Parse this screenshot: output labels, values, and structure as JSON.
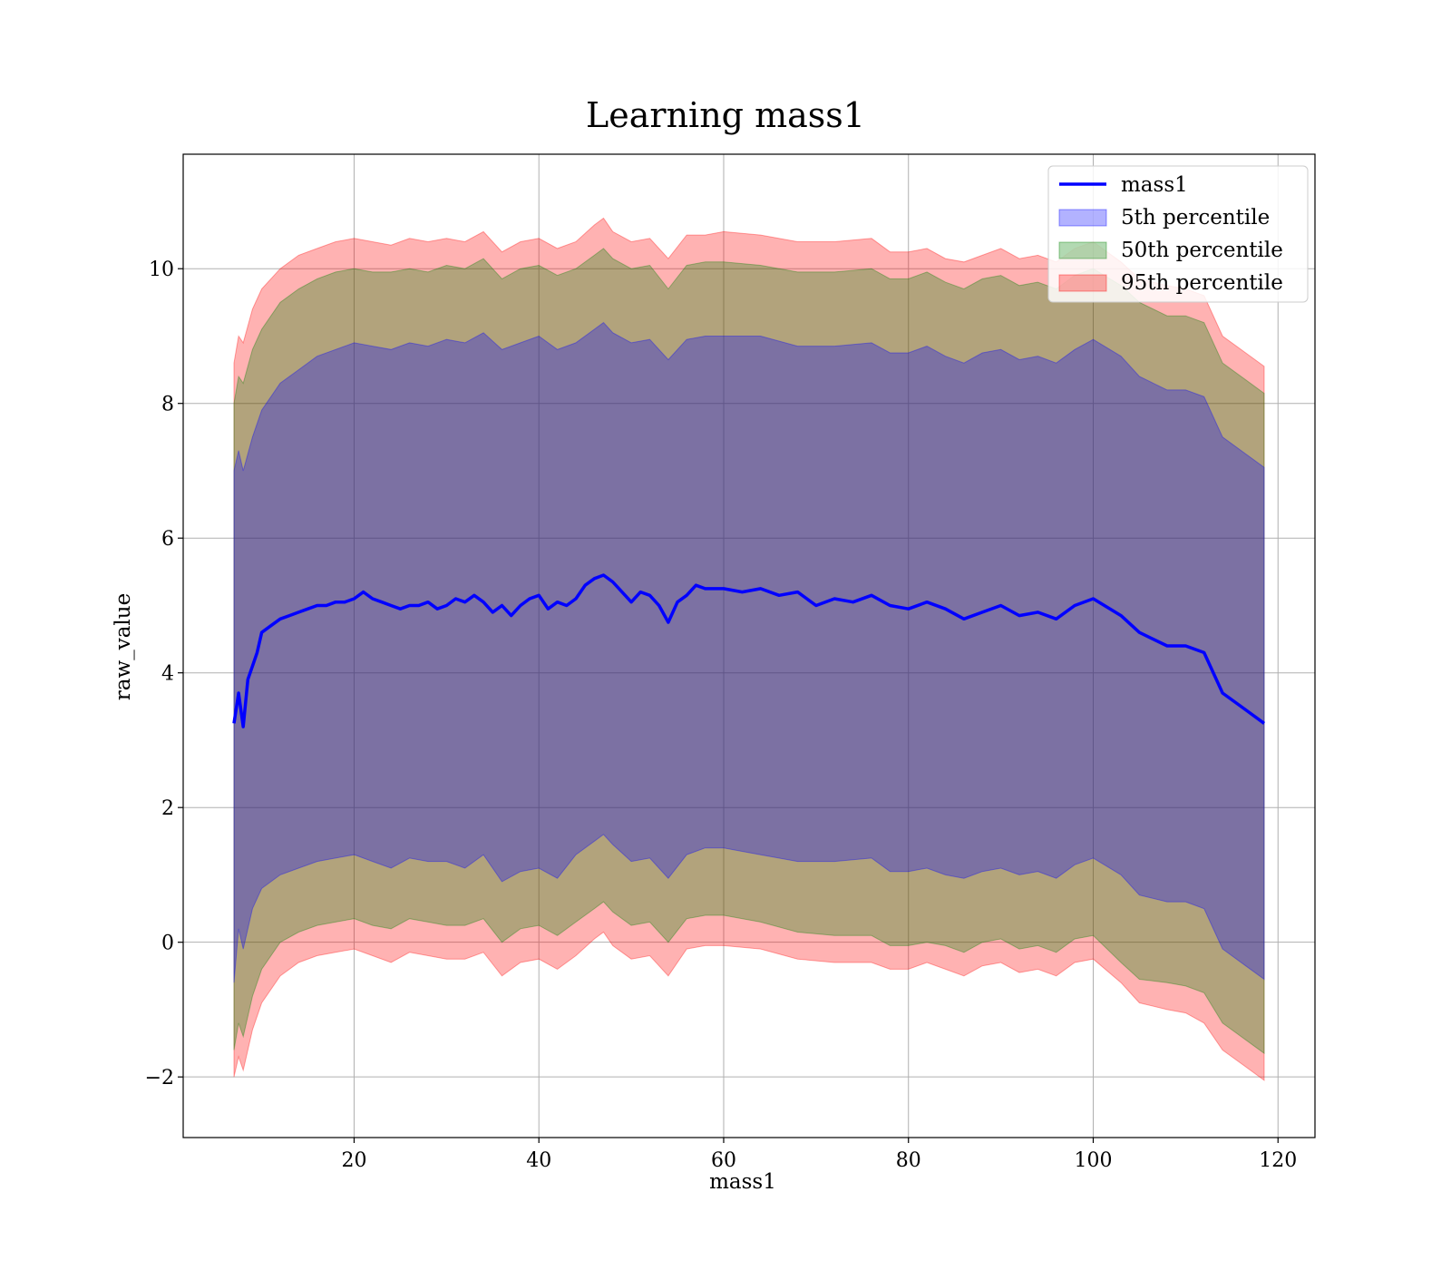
{
  "chart_data": {
    "type": "line",
    "title": "Learning mass1",
    "xlabel": "mass1",
    "ylabel": "raw_value",
    "xlim": [
      1.5,
      124
    ],
    "ylim": [
      -2.9,
      11.7
    ],
    "xticks": [
      20,
      40,
      60,
      80,
      100,
      120
    ],
    "yticks": [
      -2,
      0,
      2,
      4,
      6,
      8,
      10
    ],
    "grid": true,
    "legend_position": "top-right",
    "colors": {
      "line": "#0000ff",
      "band_5": "#0000ff",
      "band_50": "#008000",
      "band_95": "#ff0000"
    },
    "line": {
      "name": "mass1",
      "x": [
        7.0,
        7.5,
        8.0,
        8.5,
        9.0,
        9.5,
        10.0,
        11.0,
        12.0,
        13.0,
        14.0,
        15.0,
        16.0,
        17.0,
        18.0,
        19.0,
        20.0,
        21.0,
        22.0,
        23.0,
        24.0,
        25.0,
        26.0,
        27.0,
        28.0,
        29.0,
        30.0,
        31.0,
        32.0,
        33.0,
        34.0,
        35.0,
        36.0,
        37.0,
        38.0,
        39.0,
        40.0,
        41.0,
        42.0,
        43.0,
        44.0,
        45.0,
        46.0,
        47.0,
        48.0,
        49.0,
        50.0,
        51.0,
        52.0,
        53.0,
        54.0,
        55.0,
        56.0,
        57.0,
        58.0,
        59.0,
        60.0,
        62.0,
        64.0,
        66.0,
        68.0,
        70.0,
        72.0,
        74.0,
        76.0,
        78.0,
        80.0,
        82.0,
        84.0,
        86.0,
        88.0,
        90.0,
        92.0,
        94.0,
        96.0,
        98.0,
        100.0,
        103.0,
        105.0,
        108.0,
        110.0,
        112.0,
        114.0,
        116.5,
        118.5
      ],
      "y": [
        3.25,
        3.7,
        3.2,
        3.9,
        4.1,
        4.3,
        4.6,
        4.7,
        4.8,
        4.85,
        4.9,
        4.95,
        5.0,
        5.0,
        5.05,
        5.05,
        5.1,
        5.2,
        5.1,
        5.05,
        5.0,
        4.95,
        5.0,
        5.0,
        5.05,
        4.95,
        5.0,
        5.1,
        5.05,
        5.15,
        5.05,
        4.9,
        5.0,
        4.85,
        5.0,
        5.1,
        5.15,
        4.95,
        5.05,
        5.0,
        5.1,
        5.3,
        5.4,
        5.45,
        5.35,
        5.2,
        5.05,
        5.2,
        5.15,
        5.0,
        4.75,
        5.05,
        5.15,
        5.3,
        5.25,
        5.25,
        5.25,
        5.2,
        5.25,
        5.15,
        5.2,
        5.0,
        5.1,
        5.05,
        5.15,
        5.0,
        4.95,
        5.05,
        4.95,
        4.8,
        4.9,
        5.0,
        4.85,
        4.9,
        4.8,
        5.0,
        5.1,
        4.85,
        4.6,
        4.4,
        4.4,
        4.3,
        3.7,
        3.45,
        3.25
      ]
    },
    "bands": [
      {
        "name": "5th percentile",
        "x": [
          7.0,
          7.5,
          8.0,
          9.0,
          10.0,
          12.0,
          14.0,
          16.0,
          18.0,
          20.0,
          22.0,
          24.0,
          26.0,
          28.0,
          30.0,
          32.0,
          34.0,
          36.0,
          38.0,
          40.0,
          42.0,
          44.0,
          46.0,
          47.0,
          48.0,
          50.0,
          52.0,
          54.0,
          56.0,
          58.0,
          60.0,
          64.0,
          68.0,
          72.0,
          76.0,
          78.0,
          80.0,
          82.0,
          84.0,
          86.0,
          88.0,
          90.0,
          92.0,
          94.0,
          96.0,
          98.0,
          100.0,
          103.0,
          105.0,
          108.0,
          110.0,
          112.0,
          114.0,
          116.5,
          118.5
        ],
        "lower": [
          -0.6,
          0.2,
          -0.1,
          0.5,
          0.8,
          1.0,
          1.1,
          1.2,
          1.25,
          1.3,
          1.2,
          1.1,
          1.25,
          1.2,
          1.2,
          1.1,
          1.3,
          0.9,
          1.05,
          1.1,
          0.95,
          1.3,
          1.5,
          1.6,
          1.45,
          1.2,
          1.25,
          0.95,
          1.3,
          1.4,
          1.4,
          1.3,
          1.2,
          1.2,
          1.25,
          1.05,
          1.05,
          1.1,
          1.0,
          0.95,
          1.05,
          1.1,
          1.0,
          1.05,
          0.95,
          1.15,
          1.25,
          1.0,
          0.7,
          0.6,
          0.6,
          0.5,
          -0.1,
          -0.35,
          -0.55
        ],
        "upper": [
          7.0,
          7.3,
          7.0,
          7.5,
          7.9,
          8.3,
          8.5,
          8.7,
          8.8,
          8.9,
          8.85,
          8.8,
          8.9,
          8.85,
          8.95,
          8.9,
          9.05,
          8.8,
          8.9,
          9.0,
          8.8,
          8.9,
          9.1,
          9.2,
          9.05,
          8.9,
          8.95,
          8.65,
          8.95,
          9.0,
          9.0,
          9.0,
          8.85,
          8.85,
          8.9,
          8.75,
          8.75,
          8.85,
          8.7,
          8.6,
          8.75,
          8.8,
          8.65,
          8.7,
          8.6,
          8.8,
          8.95,
          8.7,
          8.4,
          8.2,
          8.2,
          8.1,
          7.5,
          7.25,
          7.05
        ]
      },
      {
        "name": "50th percentile",
        "x": [
          7.0,
          7.5,
          8.0,
          9.0,
          10.0,
          12.0,
          14.0,
          16.0,
          18.0,
          20.0,
          22.0,
          24.0,
          26.0,
          28.0,
          30.0,
          32.0,
          34.0,
          36.0,
          38.0,
          40.0,
          42.0,
          44.0,
          46.0,
          47.0,
          48.0,
          50.0,
          52.0,
          54.0,
          56.0,
          58.0,
          60.0,
          64.0,
          68.0,
          72.0,
          76.0,
          78.0,
          80.0,
          82.0,
          84.0,
          86.0,
          88.0,
          90.0,
          92.0,
          94.0,
          96.0,
          98.0,
          100.0,
          103.0,
          105.0,
          108.0,
          110.0,
          112.0,
          114.0,
          116.5,
          118.5
        ],
        "lower": [
          -1.6,
          -1.2,
          -1.4,
          -0.8,
          -0.4,
          0.0,
          0.15,
          0.25,
          0.3,
          0.35,
          0.25,
          0.2,
          0.35,
          0.3,
          0.25,
          0.25,
          0.35,
          0.0,
          0.2,
          0.25,
          0.1,
          0.3,
          0.5,
          0.6,
          0.45,
          0.25,
          0.3,
          0.0,
          0.35,
          0.4,
          0.4,
          0.3,
          0.15,
          0.1,
          0.1,
          -0.05,
          -0.05,
          0.0,
          -0.05,
          -0.15,
          0.0,
          0.05,
          -0.1,
          -0.05,
          -0.15,
          0.05,
          0.1,
          -0.3,
          -0.55,
          -0.6,
          -0.65,
          -0.75,
          -1.2,
          -1.45,
          -1.65
        ],
        "upper": [
          8.0,
          8.4,
          8.3,
          8.8,
          9.1,
          9.5,
          9.7,
          9.85,
          9.95,
          10.0,
          9.95,
          9.95,
          10.0,
          9.95,
          10.05,
          10.0,
          10.15,
          9.85,
          10.0,
          10.05,
          9.9,
          10.0,
          10.2,
          10.3,
          10.15,
          10.0,
          10.05,
          9.7,
          10.05,
          10.1,
          10.1,
          10.05,
          9.95,
          9.95,
          10.0,
          9.85,
          9.85,
          9.95,
          9.8,
          9.7,
          9.85,
          9.9,
          9.75,
          9.8,
          9.7,
          9.9,
          10.0,
          9.75,
          9.5,
          9.3,
          9.3,
          9.2,
          8.6,
          8.35,
          8.15
        ]
      },
      {
        "name": "95th percentile",
        "x": [
          7.0,
          7.5,
          8.0,
          9.0,
          10.0,
          12.0,
          14.0,
          16.0,
          18.0,
          20.0,
          22.0,
          24.0,
          26.0,
          28.0,
          30.0,
          32.0,
          34.0,
          36.0,
          38.0,
          40.0,
          42.0,
          44.0,
          46.0,
          47.0,
          48.0,
          50.0,
          52.0,
          54.0,
          56.0,
          58.0,
          60.0,
          64.0,
          68.0,
          72.0,
          76.0,
          78.0,
          80.0,
          82.0,
          84.0,
          86.0,
          88.0,
          90.0,
          92.0,
          94.0,
          96.0,
          98.0,
          100.0,
          103.0,
          105.0,
          108.0,
          110.0,
          112.0,
          114.0,
          116.5,
          118.5
        ],
        "lower": [
          -2.0,
          -1.7,
          -1.9,
          -1.3,
          -0.9,
          -0.5,
          -0.3,
          -0.2,
          -0.15,
          -0.1,
          -0.2,
          -0.3,
          -0.15,
          -0.2,
          -0.25,
          -0.25,
          -0.15,
          -0.5,
          -0.3,
          -0.25,
          -0.4,
          -0.2,
          0.05,
          0.15,
          -0.05,
          -0.25,
          -0.2,
          -0.5,
          -0.1,
          -0.05,
          -0.05,
          -0.1,
          -0.25,
          -0.3,
          -0.3,
          -0.4,
          -0.4,
          -0.3,
          -0.4,
          -0.5,
          -0.35,
          -0.3,
          -0.45,
          -0.4,
          -0.5,
          -0.3,
          -0.25,
          -0.6,
          -0.9,
          -1.0,
          -1.05,
          -1.2,
          -1.6,
          -1.85,
          -2.05
        ],
        "upper": [
          8.6,
          9.0,
          8.9,
          9.4,
          9.7,
          10.0,
          10.2,
          10.3,
          10.4,
          10.45,
          10.4,
          10.35,
          10.45,
          10.4,
          10.45,
          10.4,
          10.55,
          10.25,
          10.4,
          10.45,
          10.3,
          10.4,
          10.65,
          10.75,
          10.55,
          10.4,
          10.45,
          10.15,
          10.5,
          10.5,
          10.55,
          10.5,
          10.4,
          10.4,
          10.45,
          10.25,
          10.25,
          10.3,
          10.15,
          10.1,
          10.2,
          10.3,
          10.15,
          10.2,
          10.1,
          10.3,
          10.4,
          10.1,
          9.85,
          9.75,
          9.7,
          9.6,
          9.0,
          8.75,
          8.55
        ]
      }
    ],
    "legend": [
      "mass1",
      "5th percentile",
      "50th percentile",
      "95th percentile"
    ]
  }
}
